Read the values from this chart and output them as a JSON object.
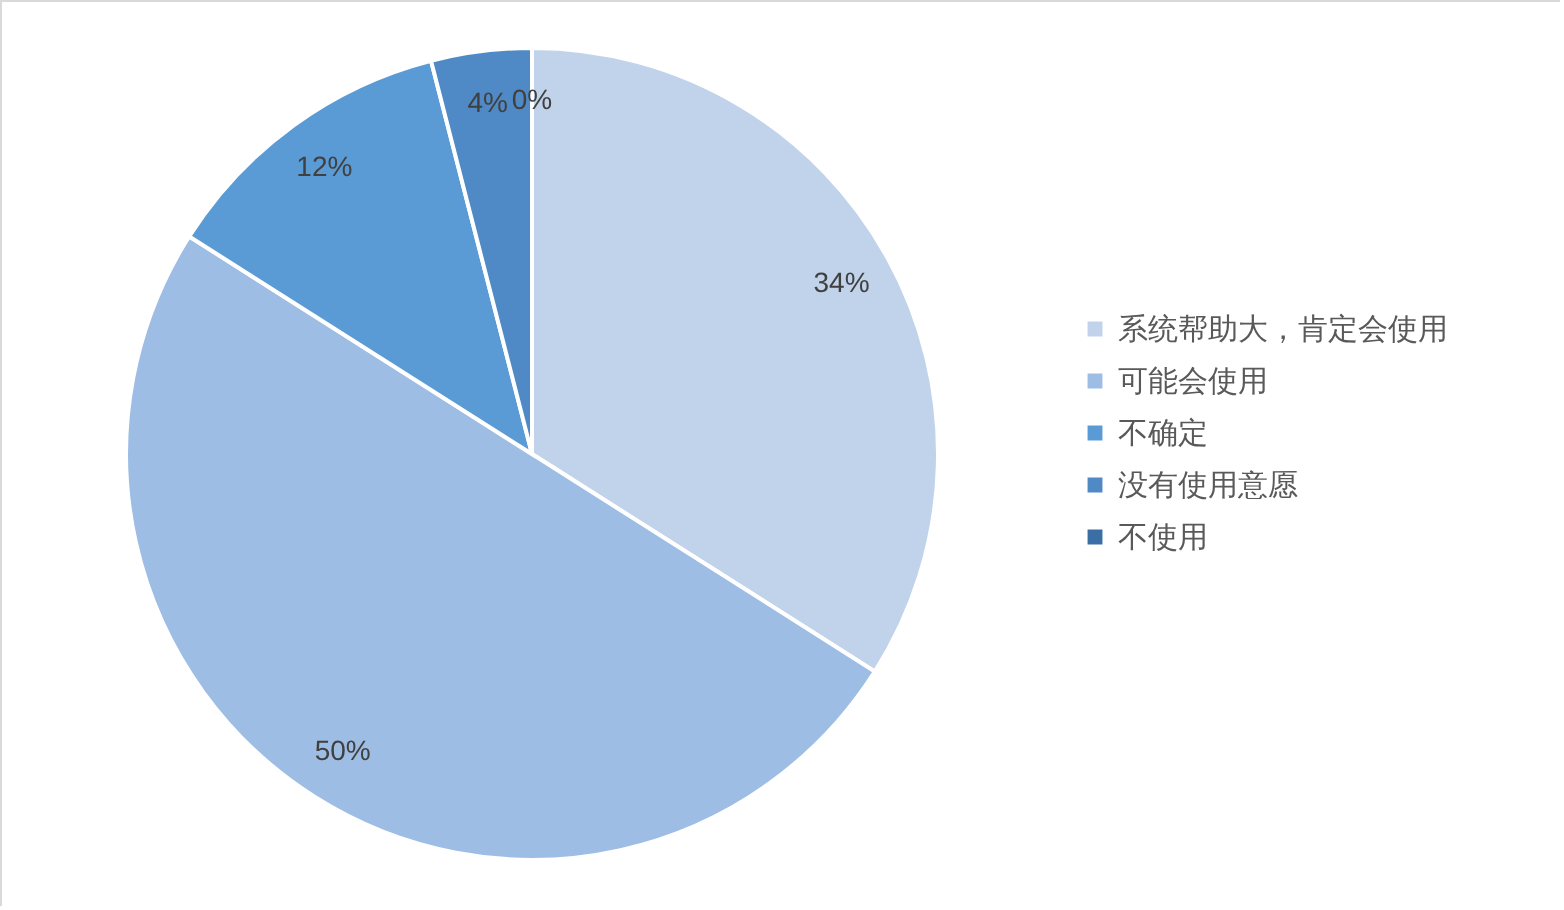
{
  "chart_data": {
    "type": "pie",
    "categories": [
      "系统帮助大，肯定会使用",
      "可能会使用",
      "不确定",
      "没有使用意愿",
      "不使用"
    ],
    "values": [
      34,
      50,
      12,
      4,
      0
    ],
    "value_labels": [
      "34%",
      "50%",
      "12%",
      "4%",
      "0%"
    ],
    "colors": [
      "#c0d3ea",
      "#9dbde4",
      "#5b9bd5",
      "#4f8ac6",
      "#3a6fa6"
    ],
    "legend": "right"
  }
}
